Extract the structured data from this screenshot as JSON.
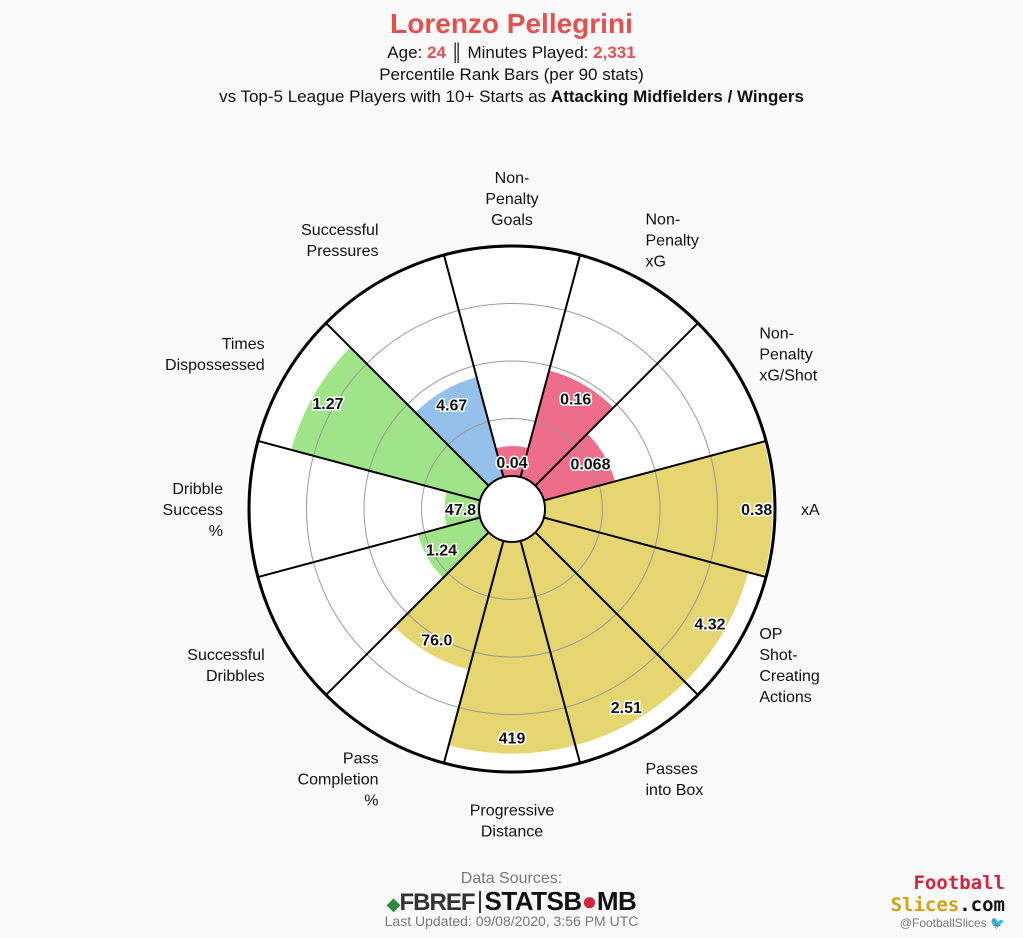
{
  "header": {
    "player_name": "Lorenzo Pellegrini",
    "age_label": "Age:",
    "age_value": "24",
    "separator": "║",
    "minutes_label": "Minutes Played:",
    "minutes_value": "2,331",
    "line2": "Percentile Rank Bars (per 90 stats)",
    "line3_prefix": "vs Top-5 League Players with 10+ Starts as",
    "line3_position": "Attacking Midfielders / Wingers"
  },
  "colors": {
    "title": "#e55050",
    "attacking": "#ee6d8a",
    "creation": "#e6d672",
    "possession": "#a0e48a",
    "defending": "#93c1ec",
    "outline": "#000000",
    "grid": "#999999"
  },
  "chart_data": {
    "type": "polar-bar",
    "categories": [
      {
        "label": [
          "Non-",
          "Penalty",
          "Goals"
        ],
        "value": "0.04",
        "percentile": 13,
        "group": "attacking"
      },
      {
        "label": [
          "Non-",
          "Penalty",
          "xG"
        ],
        "value": "0.16",
        "percentile": 48,
        "group": "attacking"
      },
      {
        "label": [
          "Non-",
          "Penalty",
          "xG/Shot"
        ],
        "value": "0.068",
        "percentile": 32,
        "group": "attacking"
      },
      {
        "label": [
          "xA"
        ],
        "value": "0.38",
        "percentile": 99,
        "group": "creation"
      },
      {
        "label": [
          "OP",
          "Shot-",
          "Creating",
          "Actions"
        ],
        "value": "4.32",
        "percentile": 92,
        "group": "creation"
      },
      {
        "label": [
          "Passes",
          "into Box"
        ],
        "value": "2.51",
        "percentile": 92,
        "group": "creation"
      },
      {
        "label": [
          "Progressive",
          "Distance"
        ],
        "value": "419",
        "percentile": 92,
        "group": "creation"
      },
      {
        "label": [
          "Pass",
          "Completion",
          "%"
        ],
        "value": "76.0",
        "percentile": 58,
        "group": "creation"
      },
      {
        "label": [
          "Successful",
          "Dribbles"
        ],
        "value": "1.24",
        "percentile": 28,
        "group": "possession"
      },
      {
        "label": [
          "Dribble",
          "Success",
          "%"
        ],
        "value": "47.8",
        "percentile": 15,
        "group": "possession"
      },
      {
        "label": [
          "Times",
          "Dispossessed"
        ],
        "value": "1.27",
        "percentile": 85,
        "group": "possession"
      },
      {
        "label": [
          "Successful",
          "Pressures"
        ],
        "value": "4.67",
        "percentile": 45,
        "group": "defending"
      }
    ],
    "rlim": [
      0,
      100
    ],
    "grid_rings": [
      25,
      50,
      75
    ]
  },
  "footer": {
    "sources_label": "Data Sources:",
    "fbref_logo": "FBREF",
    "statsbomb_logo_a": "STATSB",
    "statsbomb_logo_b": "MB",
    "updated": "Last Updated: 09/08/2020, 3:56 PM UTC",
    "brand_line1": "Football",
    "brand_line2a": "Slices",
    "brand_line2b": ".com",
    "handle": "@FootballSlices"
  }
}
